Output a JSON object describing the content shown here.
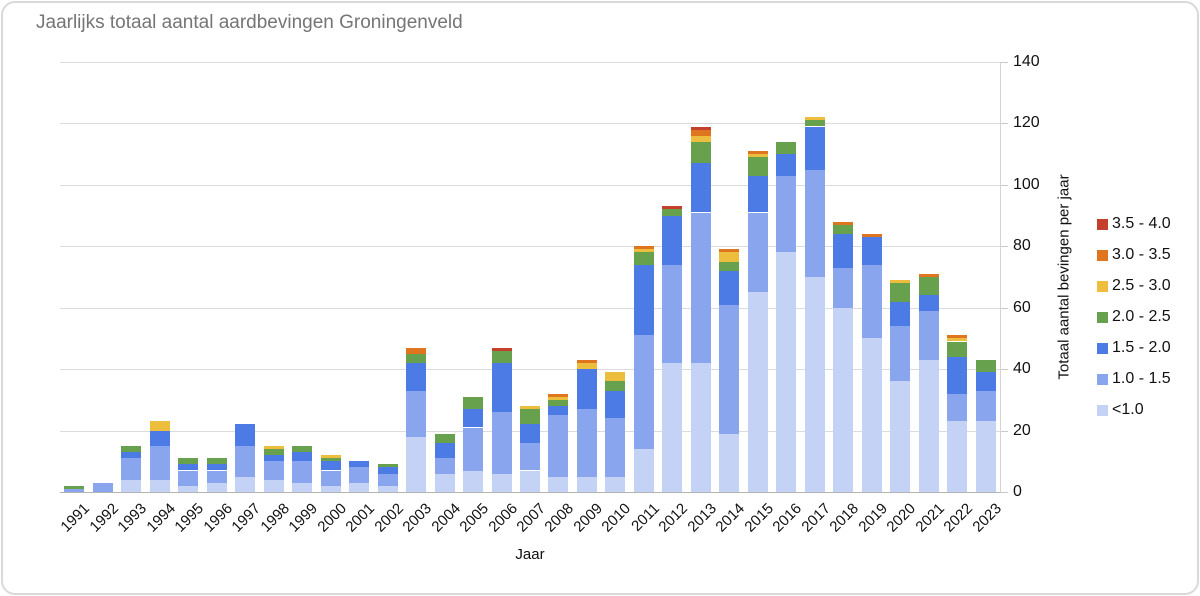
{
  "chart": {
    "title": "Jaarlijks totaal aantal aardbevingen Groningenveld",
    "x_axis_title": "Jaar",
    "y_axis_title": "Totaal aantal bevingen per jaar"
  },
  "chart_data": {
    "type": "bar",
    "stacked": true,
    "title": "Jaarlijks totaal aantal aardbevingen Groningenveld",
    "xlabel": "Jaar",
    "ylabel": "Totaal aantal bevingen per jaar",
    "ylim": [
      0,
      140
    ],
    "yticks": [
      0,
      20,
      40,
      60,
      80,
      100,
      120,
      140
    ],
    "grid": true,
    "legend_position": "right",
    "categories": [
      "1991",
      "1992",
      "1993",
      "1994",
      "1995",
      "1996",
      "1997",
      "1998",
      "1999",
      "2000",
      "2001",
      "2002",
      "2003",
      "2004",
      "2005",
      "2006",
      "2007",
      "2008",
      "2009",
      "2010",
      "2011",
      "2012",
      "2013",
      "2014",
      "2015",
      "2016",
      "2017",
      "2018",
      "2019",
      "2020",
      "2021",
      "2022",
      "2023"
    ],
    "series": [
      {
        "name": "3.5 - 4.0",
        "color": "#c5402c",
        "values": [
          0,
          0,
          0,
          0,
          0,
          0,
          0,
          0,
          0,
          0,
          0,
          0,
          0,
          0,
          0,
          1,
          0,
          0,
          0,
          0,
          0,
          1,
          1,
          0,
          0,
          0,
          0,
          0,
          0,
          0,
          0,
          0,
          0
        ]
      },
      {
        "name": "3.0 - 3.5",
        "color": "#e0751f",
        "values": [
          0,
          0,
          0,
          0,
          0,
          0,
          0,
          0,
          0,
          0,
          0,
          0,
          2,
          0,
          0,
          0,
          0,
          1,
          1,
          0,
          1,
          0,
          2,
          1,
          1,
          0,
          0,
          1,
          1,
          0,
          1,
          1,
          0
        ]
      },
      {
        "name": "2.5 - 3.0",
        "color": "#edbe3d",
        "values": [
          0,
          0,
          0,
          3,
          0,
          0,
          0,
          1,
          0,
          1,
          0,
          0,
          0,
          0,
          0,
          0,
          1,
          1,
          2,
          3,
          1,
          0,
          2,
          3,
          1,
          0,
          1,
          0,
          0,
          1,
          0,
          1,
          0
        ]
      },
      {
        "name": "2.0 - 2.5",
        "color": "#68a14d",
        "values": [
          1,
          0,
          2,
          0,
          2,
          2,
          0,
          2,
          2,
          1,
          0,
          1,
          3,
          3,
          4,
          4,
          5,
          2,
          0,
          3,
          4,
          2,
          7,
          3,
          6,
          4,
          2,
          3,
          0,
          6,
          6,
          5,
          4
        ]
      },
      {
        "name": "1.5 - 2.0",
        "color": "#4d7be5",
        "values": [
          0,
          0,
          2,
          5,
          2,
          2,
          7,
          2,
          3,
          3,
          2,
          2,
          9,
          5,
          6,
          16,
          6,
          3,
          13,
          9,
          23,
          16,
          16,
          11,
          12,
          7,
          14,
          11,
          9,
          8,
          5,
          12,
          6
        ]
      },
      {
        "name": "1.0 - 1.5",
        "color": "#88a5ee",
        "values": [
          1,
          3,
          7,
          11,
          5,
          4,
          10,
          6,
          7,
          5,
          5,
          4,
          15,
          5,
          14,
          20,
          9,
          20,
          22,
          19,
          37,
          32,
          49,
          42,
          26,
          25,
          35,
          13,
          24,
          18,
          16,
          9,
          10
        ]
      },
      {
        "name": "<1.0",
        "color": "#c4d3f5",
        "values": [
          0,
          0,
          4,
          4,
          2,
          3,
          5,
          4,
          3,
          2,
          3,
          2,
          18,
          6,
          7,
          6,
          7,
          5,
          5,
          5,
          14,
          42,
          42,
          19,
          65,
          78,
          70,
          60,
          50,
          36,
          43,
          23,
          23
        ]
      }
    ],
    "stack_order_bottom_to_top": [
      "<1.0",
      "1.0 - 1.5",
      "1.5 - 2.0",
      "2.0 - 2.5",
      "2.5 - 3.0",
      "3.0 - 3.5",
      "3.5 - 4.0"
    ],
    "totals_per_year": [
      2,
      3,
      15,
      23,
      11,
      11,
      22,
      15,
      15,
      12,
      10,
      9,
      47,
      19,
      31,
      47,
      28,
      32,
      43,
      39,
      80,
      93,
      119,
      79,
      111,
      114,
      122,
      88,
      84,
      69,
      71,
      51,
      43
    ]
  }
}
